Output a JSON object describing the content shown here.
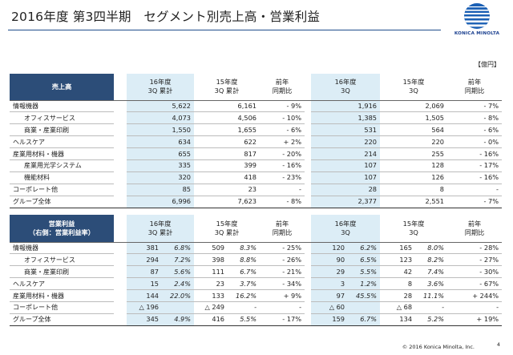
{
  "title": "2016年度 第3四半期　セグメント別売上高・営業利益",
  "logo": {
    "text": "KONICA MINOLTA",
    "icon": "konica-minolta-globe-logo"
  },
  "unit": "【億円】",
  "sales": {
    "label": "売上高",
    "headers": [
      "16年度\n3Q 累計",
      "15年度\n3Q 累計",
      "前年\n同期比",
      "16年度\n3Q",
      "15年度\n3Q",
      "前年\n同期比"
    ],
    "rows": [
      {
        "name": "情報機器",
        "level": 1,
        "v": [
          "5,622",
          "6,161",
          "- 9%",
          "1,916",
          "2,069",
          "- 7%"
        ]
      },
      {
        "name": "オフィスサービス",
        "level": 2,
        "v": [
          "4,073",
          "4,506",
          "- 10%",
          "1,385",
          "1,505",
          "- 8%"
        ]
      },
      {
        "name": "商業・産業印刷",
        "level": 2,
        "v": [
          "1,550",
          "1,655",
          "- 6%",
          "531",
          "564",
          "- 6%"
        ]
      },
      {
        "name": "ヘルスケア",
        "level": 1,
        "v": [
          "634",
          "622",
          "+ 2%",
          "220",
          "220",
          "- 0%"
        ]
      },
      {
        "name": "産業用材料・機器",
        "level": 1,
        "v": [
          "655",
          "817",
          "- 20%",
          "214",
          "255",
          "- 16%"
        ]
      },
      {
        "name": "産業用光学システム",
        "level": 2,
        "v": [
          "335",
          "399",
          "- 16%",
          "107",
          "128",
          "- 17%"
        ]
      },
      {
        "name": "機能材料",
        "level": 2,
        "v": [
          "320",
          "418",
          "- 23%",
          "107",
          "126",
          "- 16%"
        ]
      },
      {
        "name": "コーポレート他",
        "level": 1,
        "v": [
          "85",
          "23",
          "-",
          "28",
          "8",
          "-"
        ]
      },
      {
        "name": "グループ全体",
        "level": 1,
        "v": [
          "6,996",
          "7,623",
          "- 8%",
          "2,377",
          "2,551",
          "- 7%"
        ]
      }
    ]
  },
  "op": {
    "label": "営業利益\n（右側：営業利益率）",
    "headers": [
      "16年度\n3Q 累計",
      "15年度\n3Q 累計",
      "前年\n同期比",
      "16年度\n3Q",
      "15年度\n3Q",
      "前年\n同期比"
    ],
    "rows": [
      {
        "name": "情報機器",
        "level": 1,
        "v": [
          "381",
          "6.8%",
          "509",
          "8.3%",
          "- 25%",
          "120",
          "6.2%",
          "165",
          "8.0%",
          "- 28%"
        ]
      },
      {
        "name": "オフィスサービス",
        "level": 2,
        "v": [
          "294",
          "7.2%",
          "398",
          "8.8%",
          "- 26%",
          "90",
          "6.5%",
          "123",
          "8.2%",
          "- 27%"
        ]
      },
      {
        "name": "商業・産業印刷",
        "level": 2,
        "v": [
          "87",
          "5.6%",
          "111",
          "6.7%",
          "- 21%",
          "29",
          "5.5%",
          "42",
          "7.4%",
          "- 30%"
        ]
      },
      {
        "name": "ヘルスケア",
        "level": 1,
        "v": [
          "15",
          "2.4%",
          "23",
          "3.7%",
          "- 34%",
          "3",
          "1.2%",
          "8",
          "3.6%",
          "- 67%"
        ]
      },
      {
        "name": "産業用材料・機器",
        "level": 1,
        "v": [
          "144",
          "22.0%",
          "133",
          "16.2%",
          "+ 9%",
          "97",
          "45.5%",
          "28",
          "11.1%",
          "+ 244%"
        ]
      },
      {
        "name": "コーポレート他",
        "level": 1,
        "v": [
          "△ 196",
          "",
          "△ 249",
          "-",
          "-",
          "△ 60",
          "",
          "△ 68",
          "-",
          "-"
        ]
      },
      {
        "name": "グループ全体",
        "level": 1,
        "v": [
          "345",
          "4.9%",
          "416",
          "5.5%",
          "- 17%",
          "159",
          "6.7%",
          "134",
          "5.2%",
          "+ 19%"
        ]
      }
    ]
  },
  "footer": "© 2016 Konica Minolta, Inc.",
  "page_number": "4"
}
